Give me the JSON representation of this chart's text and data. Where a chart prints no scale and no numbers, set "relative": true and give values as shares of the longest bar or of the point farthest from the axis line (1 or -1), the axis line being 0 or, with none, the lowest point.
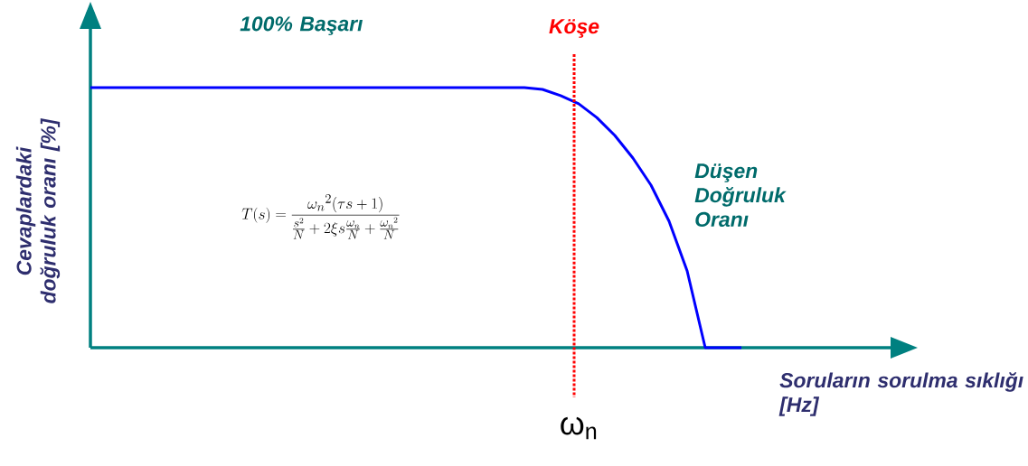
{
  "chart_data": {
    "type": "line",
    "relative": true,
    "xlabel": "Soruların sorulma sıklığı [Hz]",
    "ylabel": "Cevaplardaki doğruluk oranı [%]",
    "categories": [
      null,
      null,
      null,
      null,
      null,
      null,
      null,
      null,
      null,
      null,
      null,
      null,
      null,
      null,
      null,
      null,
      null,
      null,
      null,
      null,
      null,
      null,
      null,
      null,
      null,
      null,
      null,
      null,
      null,
      null,
      null,
      null,
      null,
      null,
      null,
      null,
      null
    ],
    "series": [
      {
        "color": "#0000ff",
        "values": [
          1,
          1,
          1,
          1,
          1,
          1,
          1,
          1,
          1,
          1,
          1,
          1,
          1,
          1,
          1,
          1,
          1,
          1,
          1,
          1,
          1,
          1,
          1,
          1,
          1,
          0.993,
          0.969,
          0.938,
          0.885,
          0.816,
          0.729,
          0.625,
          0.486,
          0.295,
          0,
          0,
          0
        ]
      }
    ],
    "annotations": [
      "Köşe",
      "100% Başarı",
      "Düşen Doğruluk Oranı",
      "T(s) = \\frac{{\\omega_n}^2(\\tau s+1)}{\\frac{s^2}{N}+2\\xi s\\frac{\\omega_n}{N}+\\frac{{\\omega_n}^2}{N}}",
      "ω$_{n}$"
    ]
  }
}
